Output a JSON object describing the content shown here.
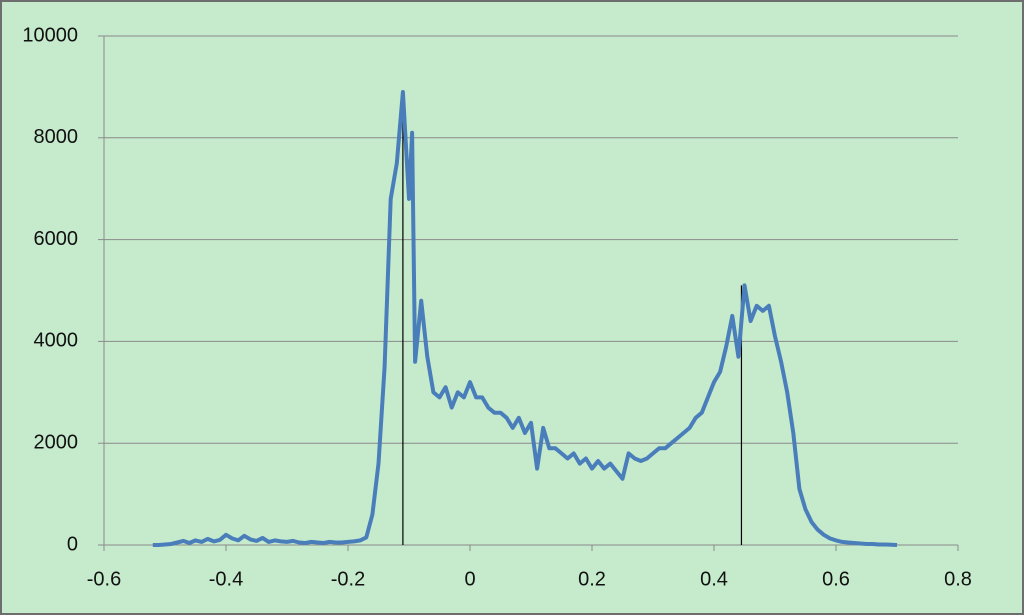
{
  "chart_data": {
    "type": "line",
    "x": [
      -0.52,
      -0.51,
      -0.5,
      -0.49,
      -0.48,
      -0.47,
      -0.46,
      -0.45,
      -0.44,
      -0.43,
      -0.42,
      -0.41,
      -0.4,
      -0.39,
      -0.38,
      -0.37,
      -0.36,
      -0.35,
      -0.34,
      -0.33,
      -0.32,
      -0.31,
      -0.3,
      -0.29,
      -0.28,
      -0.27,
      -0.26,
      -0.25,
      -0.24,
      -0.23,
      -0.22,
      -0.21,
      -0.2,
      -0.19,
      -0.18,
      -0.17,
      -0.16,
      -0.15,
      -0.14,
      -0.13,
      -0.12,
      -0.11,
      -0.1,
      -0.095,
      -0.09,
      -0.08,
      -0.07,
      -0.06,
      -0.05,
      -0.04,
      -0.03,
      -0.02,
      -0.01,
      0,
      0.01,
      0.02,
      0.03,
      0.04,
      0.05,
      0.06,
      0.07,
      0.08,
      0.09,
      0.1,
      0.11,
      0.12,
      0.13,
      0.14,
      0.15,
      0.16,
      0.17,
      0.18,
      0.19,
      0.2,
      0.21,
      0.22,
      0.23,
      0.24,
      0.25,
      0.26,
      0.27,
      0.28,
      0.29,
      0.3,
      0.31,
      0.32,
      0.33,
      0.34,
      0.35,
      0.36,
      0.37,
      0.38,
      0.39,
      0.4,
      0.41,
      0.42,
      0.43,
      0.44,
      0.45,
      0.46,
      0.47,
      0.48,
      0.49,
      0.5,
      0.51,
      0.52,
      0.53,
      0.54,
      0.55,
      0.56,
      0.57,
      0.58,
      0.59,
      0.6,
      0.61,
      0.62,
      0.63,
      0.64,
      0.65,
      0.66,
      0.67,
      0.68,
      0.69,
      0.7
    ],
    "series": [
      {
        "color": "#4a7ebb",
        "values": [
          0,
          0,
          10,
          20,
          50,
          80,
          40,
          90,
          60,
          120,
          70,
          100,
          200,
          130,
          90,
          180,
          110,
          80,
          140,
          60,
          90,
          70,
          60,
          80,
          50,
          40,
          60,
          50,
          40,
          60,
          50,
          50,
          60,
          70,
          90,
          150,
          600,
          1600,
          3500,
          6800,
          7500,
          8900,
          6800,
          8100,
          3600,
          4800,
          3700,
          3000,
          2900,
          3100,
          2700,
          3000,
          2900,
          3200,
          2900,
          2900,
          2700,
          2600,
          2600,
          2500,
          2300,
          2500,
          2200,
          2400,
          1500,
          2300,
          1900,
          1900,
          1800,
          1700,
          1800,
          1600,
          1700,
          1500,
          1650,
          1500,
          1600,
          1450,
          1300,
          1800,
          1700,
          1650,
          1700,
          1800,
          1900,
          1900,
          2000,
          2100,
          2200,
          2300,
          2500,
          2600,
          2900,
          3200,
          3400,
          3900,
          4500,
          3700,
          5100,
          4400,
          4700,
          4600,
          4700,
          4100,
          3600,
          3000,
          2200,
          1100,
          700,
          450,
          300,
          200,
          130,
          90,
          60,
          50,
          40,
          30,
          20,
          20,
          10,
          10,
          5,
          0
        ]
      }
    ],
    "markers": [
      {
        "x": -0.11,
        "y": 8800
      },
      {
        "x": 0.445,
        "y": 5100
      }
    ],
    "xlim": [
      -0.6,
      0.8
    ],
    "xticks": [
      -0.6,
      -0.4,
      -0.2,
      0,
      0.2,
      0.4,
      0.6,
      0.8
    ],
    "ylim": [
      0,
      10000
    ],
    "yticks": [
      0,
      2000,
      4000,
      6000,
      8000,
      10000
    ],
    "grid": true
  }
}
